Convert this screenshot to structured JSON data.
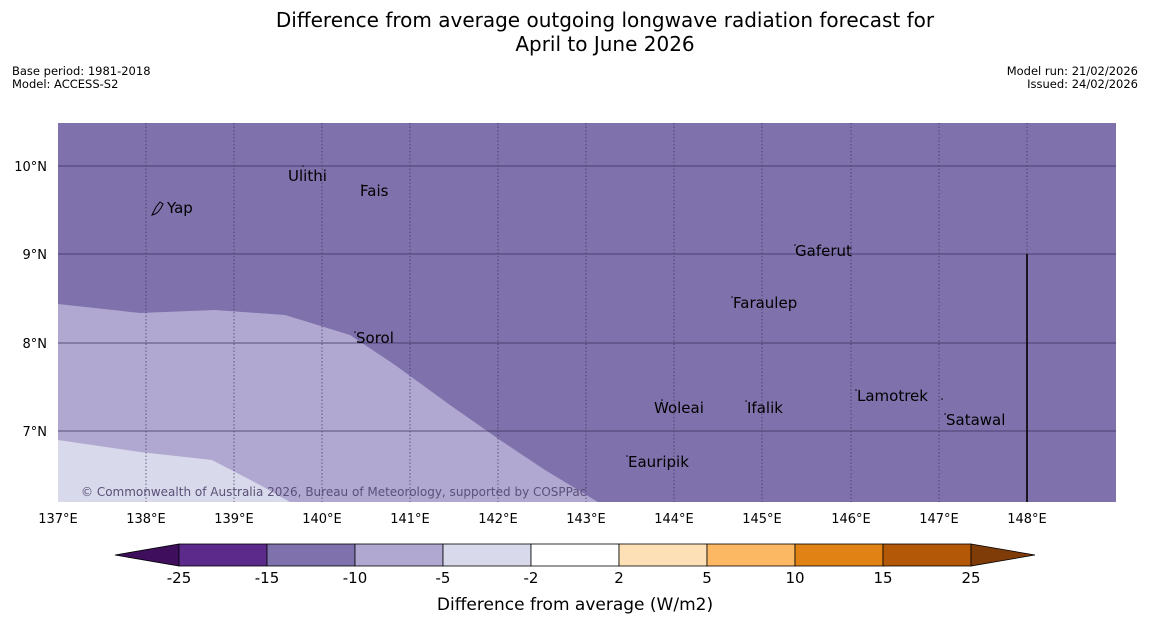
{
  "title": {
    "line1": "Difference from average outgoing longwave radiation forecast for",
    "line2": "April to June 2026"
  },
  "meta": {
    "base_period": "Base period: 1981-2018",
    "model": "Model: ACCESS-S2",
    "model_run": "Model run: 21/02/2026",
    "issued": "Issued: 24/02/2026"
  },
  "map": {
    "lon_labels": [
      "137°E",
      "138°E",
      "139°E",
      "140°E",
      "141°E",
      "142°E",
      "143°E",
      "144°E",
      "145°E",
      "146°E",
      "147°E",
      "148°E"
    ],
    "lat_labels": [
      "10°N",
      "9°N",
      "8°N",
      "7°N"
    ],
    "places": [
      "Ulithi",
      "Fais",
      "Yap",
      "Gaferut",
      "Faraulep",
      "Sorol",
      "Lamotrek",
      "Woleai",
      "Ifalik",
      "Satawal",
      "Eauripik"
    ],
    "copyright": "© Commonwealth of Australia 2026, Bureau of Meteorology, supported by COSPPac"
  },
  "colorbar": {
    "ticks": [
      "-25",
      "-15",
      "-10",
      "-5",
      "-2",
      "2",
      "5",
      "10",
      "15",
      "25"
    ],
    "colors": [
      "#3f0f5e",
      "#5b2a8a",
      "#7f71ab",
      "#b0a8d1",
      "#d8d9ea",
      "#ffffff",
      "#fee0b6",
      "#fdb863",
      "#e08214",
      "#b35806",
      "#7f3b08"
    ],
    "label": "Difference from average (W/m2)"
  }
}
